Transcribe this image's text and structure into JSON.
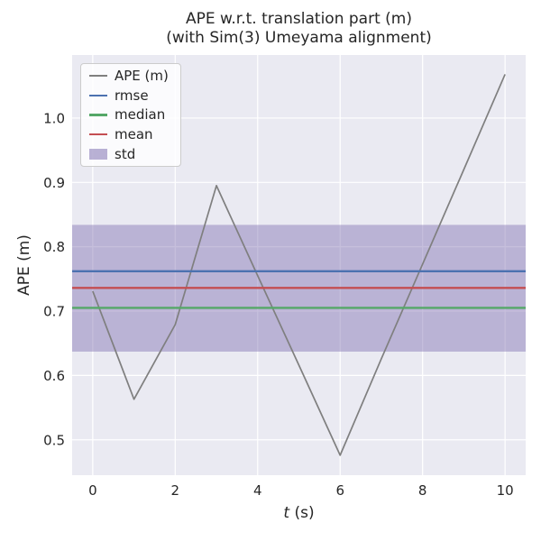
{
  "title": {
    "line1": "APE w.r.t. translation part (m)",
    "line2": "(with Sim(3) Umeyama alignment)"
  },
  "chart_data": {
    "type": "line",
    "x": [
      0,
      1,
      2,
      3,
      4,
      5,
      6,
      7,
      8,
      9,
      10
    ],
    "series": [
      {
        "name": "APE (m)",
        "color": "#7f7f7f",
        "values": [
          0.731,
          0.563,
          0.679,
          0.895,
          0.755,
          0.616,
          0.476,
          0.626,
          0.773,
          0.92,
          1.068
        ]
      }
    ],
    "stat_lines": [
      {
        "name": "rmse",
        "value": 0.762,
        "color": "#4C72B0"
      },
      {
        "name": "median",
        "value": 0.705,
        "color": "#55A868"
      },
      {
        "name": "mean",
        "value": 0.736,
        "color": "#C44E52"
      }
    ],
    "std_band": {
      "name": "std",
      "low": 0.637,
      "high": 0.834,
      "color": "#8172B2",
      "opacity": 0.45
    },
    "xlabel_var": "t",
    "xlabel_rest": " (s)",
    "ylabel": "APE (m)",
    "xlim": [
      -0.5,
      10.5
    ],
    "ylim": [
      0.445,
      1.098
    ],
    "xticks": [
      0,
      2,
      4,
      6,
      8,
      10
    ],
    "yticks": [
      0.5,
      0.6,
      0.7,
      0.8,
      0.9,
      1.0
    ],
    "grid": true,
    "legend_position": "upper left",
    "colors": {
      "figure_bg": "#ffffff",
      "plot_bg": "#EAEAF2",
      "grid": "#ffffff",
      "text": "#262626"
    }
  },
  "legend": {
    "entries": [
      {
        "label": "APE (m)",
        "swatch": "line",
        "color": "#7f7f7f",
        "opacity": 1
      },
      {
        "label": "rmse",
        "swatch": "line",
        "color": "#4C72B0",
        "opacity": 1
      },
      {
        "label": "median",
        "swatch": "line",
        "color": "#55A868",
        "opacity": 1
      },
      {
        "label": "mean",
        "swatch": "line",
        "color": "#C44E52",
        "opacity": 1
      },
      {
        "label": "std",
        "swatch": "patch",
        "color": "#8172B2",
        "opacity": 0.55
      }
    ]
  }
}
